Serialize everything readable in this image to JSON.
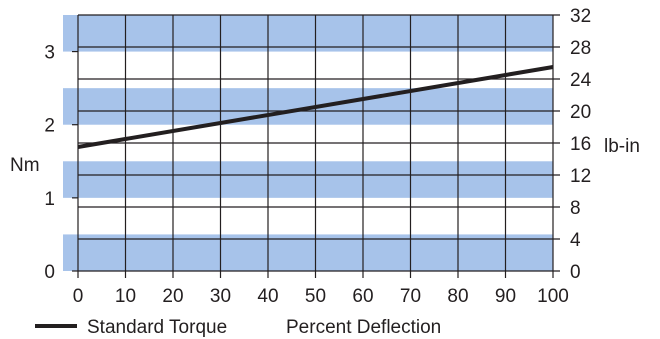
{
  "chart_data": {
    "type": "line",
    "title": "",
    "xlabel": "Percent Deflection",
    "ylabel_left": "Nm",
    "ylabel_right": "lb-in",
    "x_ticks": [
      "0",
      "10",
      "20",
      "30",
      "40",
      "50",
      "60",
      "70",
      "80",
      "90",
      "100"
    ],
    "y_left_ticks": [
      "0",
      "1",
      "2",
      "3"
    ],
    "y_right_ticks": [
      "0",
      "4",
      "8",
      "12",
      "16",
      "20",
      "24",
      "28",
      "32"
    ],
    "xlim": [
      0,
      100
    ],
    "ylim_left": [
      0,
      3.5
    ],
    "ylim_right": [
      0,
      32
    ],
    "grid": true,
    "legend_position": "bottom-left",
    "bands_nm": [
      [
        0,
        0.5
      ],
      [
        1,
        1.5
      ],
      [
        2,
        2.5
      ],
      [
        3,
        3.5
      ]
    ],
    "colors": {
      "band": "#a7c3ea",
      "line": "#231f20",
      "grid": "#231f20"
    },
    "series": [
      {
        "name": "Standard Torque",
        "x": [
          0,
          100
        ],
        "y_lbin": [
          15.5,
          25.5
        ]
      }
    ]
  }
}
